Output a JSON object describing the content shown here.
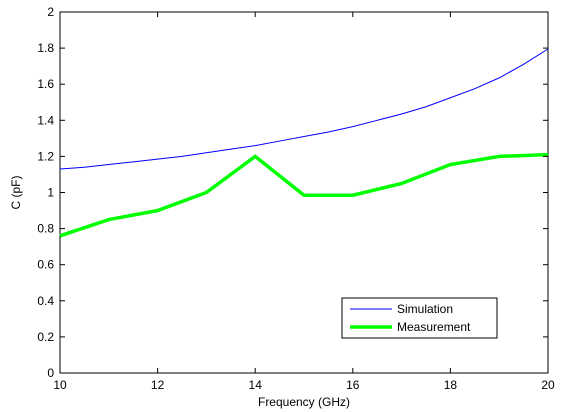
{
  "chart_data": {
    "type": "line",
    "title": "",
    "xlabel": "Frequency (GHz)",
    "ylabel": "C (pF)",
    "xlim": [
      10,
      20
    ],
    "ylim": [
      0,
      2
    ],
    "xticks": [
      10,
      12,
      14,
      16,
      18,
      20
    ],
    "yticks": [
      0,
      0.2,
      0.4,
      0.6,
      0.8,
      1,
      1.2,
      1.4,
      1.6,
      1.8,
      2
    ],
    "xtick_labels": [
      "10",
      "12",
      "14",
      "16",
      "18",
      "20"
    ],
    "ytick_labels": [
      "0",
      "0.2",
      "0.4",
      "0.6",
      "0.8",
      "1",
      "1.2",
      "1.4",
      "1.6",
      "1.8",
      "2"
    ],
    "grid": false,
    "legend_position": "bottom-right",
    "series": [
      {
        "name": "Simulation",
        "color": "#0000ff",
        "style": "thin",
        "x": [
          10,
          10.5,
          11,
          11.5,
          12,
          12.5,
          13,
          13.5,
          14,
          14.5,
          15,
          15.5,
          16,
          16.5,
          17,
          17.5,
          18,
          18.5,
          19,
          19.5,
          20
        ],
        "y": [
          1.13,
          1.14,
          1.155,
          1.17,
          1.185,
          1.2,
          1.22,
          1.24,
          1.26,
          1.285,
          1.31,
          1.335,
          1.365,
          1.4,
          1.435,
          1.475,
          1.525,
          1.575,
          1.635,
          1.71,
          1.795
        ]
      },
      {
        "name": "Measurement",
        "color": "#00ff00",
        "style": "thick",
        "x": [
          10,
          11,
          12,
          13,
          14,
          15,
          16,
          17,
          18,
          19,
          20
        ],
        "y": [
          0.76,
          0.85,
          0.9,
          1.0,
          1.2,
          0.985,
          0.985,
          1.05,
          1.155,
          1.2,
          1.21
        ]
      }
    ]
  }
}
